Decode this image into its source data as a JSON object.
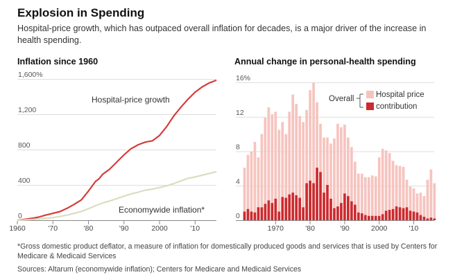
{
  "title": "Explosion in Spending",
  "subtitle": "Hospital-price growth, which has outpaced overall inflation for decades, is a major driver of the increase in health spending.",
  "footnote": "*Gross domestic product deflator, a measure of inflation for domestically produced goods and services that is used by Centers for Medicare & Medicaid Services",
  "sources": "Sources: Altarum (economywide inflation); Centers for Medicare and Medicaid Services",
  "colors": {
    "hospital": "#d63a3a",
    "economywide": "#dcdcc0",
    "overall": "#f6c4bf",
    "contribution": "#cc2b2f",
    "grid": "#dddddd",
    "axis": "#888888"
  },
  "chart_data": [
    {
      "type": "line",
      "title": "Inflation since 1960",
      "ylim": [
        0,
        1600
      ],
      "xlim": [
        1960,
        2016
      ],
      "y_ticks": [
        0,
        400,
        800,
        1200,
        1600
      ],
      "y_tick_labels": [
        "0",
        "400",
        "800",
        "1,200",
        "1,600%"
      ],
      "x_ticks": [
        1960,
        1970,
        1980,
        1990,
        2000,
        2010
      ],
      "x_tick_labels": [
        "1960",
        "'70",
        "'80",
        "'90",
        "2000",
        "'10"
      ],
      "grid": true,
      "series": [
        {
          "name": "Hospital-price growth",
          "x": [
            1960,
            1962,
            1964,
            1966,
            1968,
            1970,
            1972,
            1974,
            1976,
            1978,
            1980,
            1982,
            1983,
            1984,
            1986,
            1988,
            1990,
            1992,
            1994,
            1996,
            1998,
            2000,
            2002,
            2004,
            2006,
            2008,
            2010,
            2012,
            2014,
            2016
          ],
          "y": [
            0,
            10,
            20,
            35,
            58,
            78,
            98,
            135,
            180,
            230,
            330,
            440,
            470,
            520,
            580,
            660,
            740,
            810,
            855,
            885,
            900,
            960,
            1060,
            1180,
            1280,
            1370,
            1450,
            1510,
            1555,
            1585
          ]
        },
        {
          "name": "Economywide inflation*",
          "x": [
            1960,
            1964,
            1968,
            1970,
            1972,
            1974,
            1976,
            1978,
            1980,
            1982,
            1984,
            1986,
            1988,
            1990,
            1992,
            1994,
            1996,
            1998,
            2000,
            2002,
            2004,
            2006,
            2008,
            2010,
            2012,
            2014,
            2016
          ],
          "y": [
            0,
            8,
            20,
            30,
            42,
            58,
            78,
            100,
            130,
            165,
            195,
            218,
            245,
            272,
            298,
            318,
            340,
            352,
            370,
            390,
            415,
            445,
            475,
            490,
            510,
            530,
            550
          ]
        }
      ]
    },
    {
      "type": "bar",
      "title": "Annual change in personal-health spending",
      "ylim": [
        0,
        16
      ],
      "y_ticks": [
        0,
        4,
        8,
        12,
        16
      ],
      "y_tick_labels": [
        "0",
        "4",
        "8",
        "12",
        "16%"
      ],
      "x_ticks": [
        1970,
        1980,
        1990,
        2000,
        2010
      ],
      "x_tick_labels": [
        "1970",
        "'80",
        "'90",
        "2000",
        "'10"
      ],
      "grid": true,
      "categories": [
        1961,
        1962,
        1963,
        1964,
        1965,
        1966,
        1967,
        1968,
        1969,
        1970,
        1971,
        1972,
        1973,
        1974,
        1975,
        1976,
        1977,
        1978,
        1979,
        1980,
        1981,
        1982,
        1983,
        1984,
        1985,
        1986,
        1987,
        1988,
        1989,
        1990,
        1991,
        1992,
        1993,
        1994,
        1995,
        1996,
        1997,
        1998,
        1999,
        2000,
        2001,
        2002,
        2003,
        2004,
        2005,
        2006,
        2007,
        2008,
        2009,
        2010,
        2011,
        2012,
        2013,
        2014,
        2015,
        2016
      ],
      "legend_heading": "Overall",
      "series": [
        {
          "name": "Hospital price",
          "values": [
            6.1,
            7.6,
            8.0,
            9.1,
            7.3,
            10.0,
            11.9,
            13.1,
            12.3,
            12.6,
            10.5,
            11.4,
            10.0,
            12.6,
            14.6,
            13.5,
            12.1,
            11.4,
            12.8,
            15.1,
            16.0,
            13.7,
            11.2,
            9.6,
            9.6,
            8.9,
            9.5,
            11.2,
            10.8,
            11.1,
            9.6,
            8.5,
            6.8,
            5.4,
            5.4,
            5.0,
            5.0,
            5.2,
            5.1,
            7.3,
            8.3,
            8.1,
            7.8,
            6.9,
            6.4,
            6.3,
            6.2,
            4.7,
            3.9,
            3.7,
            3.1,
            3.2,
            2.8,
            4.7,
            5.9,
            4.3
          ]
        },
        {
          "name": "contribution",
          "values": [
            1.0,
            1.3,
            1.0,
            0.9,
            1.5,
            1.5,
            1.9,
            2.3,
            2.0,
            2.5,
            1.0,
            2.7,
            2.6,
            3.0,
            3.2,
            2.9,
            2.6,
            1.5,
            4.3,
            4.6,
            4.3,
            6.1,
            5.6,
            3.2,
            4.1,
            2.5,
            1.4,
            1.6,
            2.0,
            3.1,
            2.8,
            2.2,
            1.8,
            0.9,
            0.8,
            0.6,
            0.5,
            0.5,
            0.5,
            0.5,
            0.7,
            1.1,
            1.2,
            1.3,
            1.6,
            1.5,
            1.4,
            1.5,
            1.1,
            1.0,
            0.9,
            0.6,
            0.4,
            0.2,
            0.3,
            0.2
          ]
        }
      ]
    }
  ]
}
